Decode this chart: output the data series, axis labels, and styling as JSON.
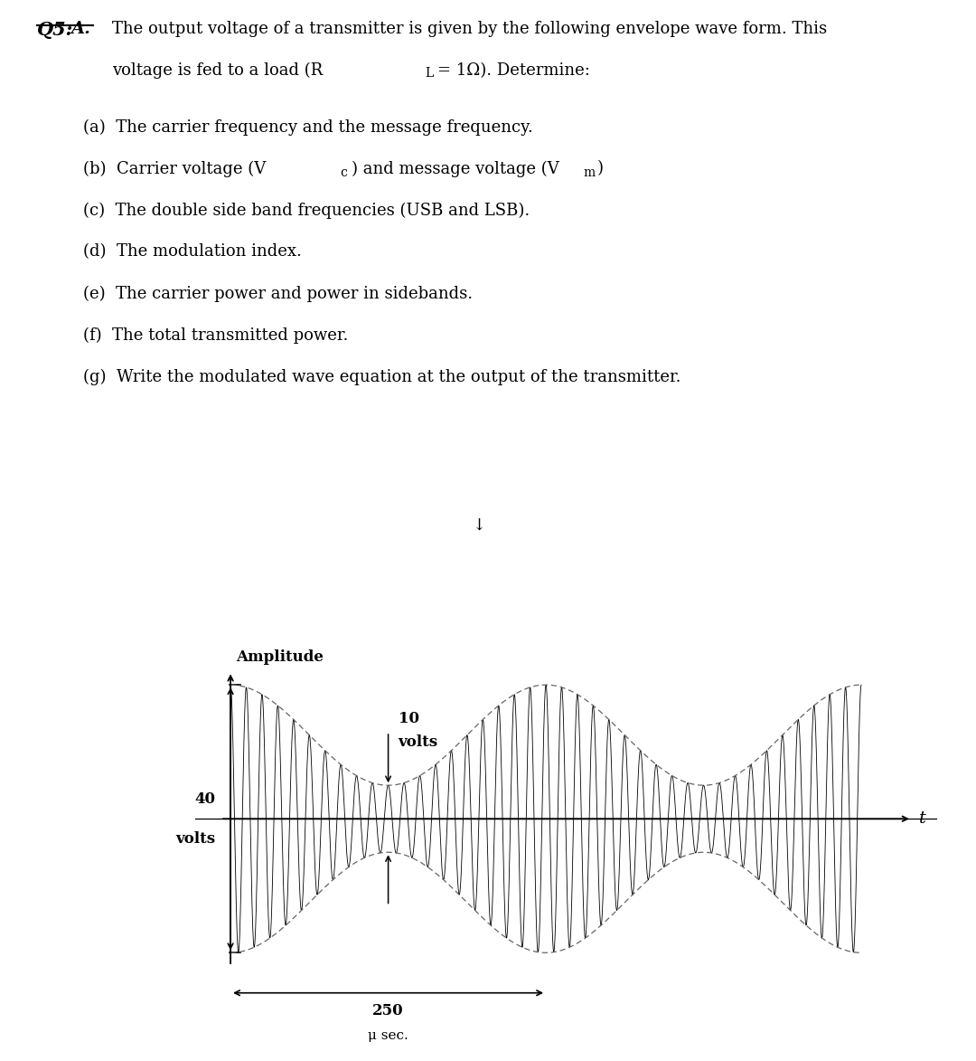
{
  "background_color": "#ffffff",
  "gray_band_color": "#e0e0e0",
  "waveform_color": "#000000",
  "envelope_color": "#666666",
  "text_color": "#000000",
  "Vc": 25.0,
  "Vm": 15.0,
  "carrier_cycles": 20,
  "message_periods": 2,
  "message_period_us": 250,
  "amplitude_label": "Amplitude",
  "x_axis_label": "t",
  "label_40": "40",
  "label_volts_40": "volts",
  "label_10": "10",
  "label_volts_10": "volts",
  "label_250": "250",
  "label_usec": "μ sec.",
  "q_label": "Q5:",
  "a_label": "A.",
  "line1": "The output voltage of a transmitter is given by the following envelope wave form. This",
  "line2a": "voltage is fed to a load (R",
  "line2b": "L",
  "line2c": "= 1Ω). Determine:",
  "item_a": "(a)  The carrier frequency and the message frequency.",
  "item_b1": "(b)  Carrier voltage (V",
  "item_b2": "c",
  "item_b3": ") and message voltage (V",
  "item_b4": "m",
  "item_b5": ")",
  "item_c": "(c)  The double side band frequencies (USB and LSB).",
  "item_d": "(d)  The modulation index.",
  "item_e": "(e)  The carrier power and power in sidebands.",
  "item_f": "(f)  The total transmitted power.",
  "item_g": "(g)  Write the modulated wave equation at the output of the transmitter.",
  "page_marker": "↓"
}
